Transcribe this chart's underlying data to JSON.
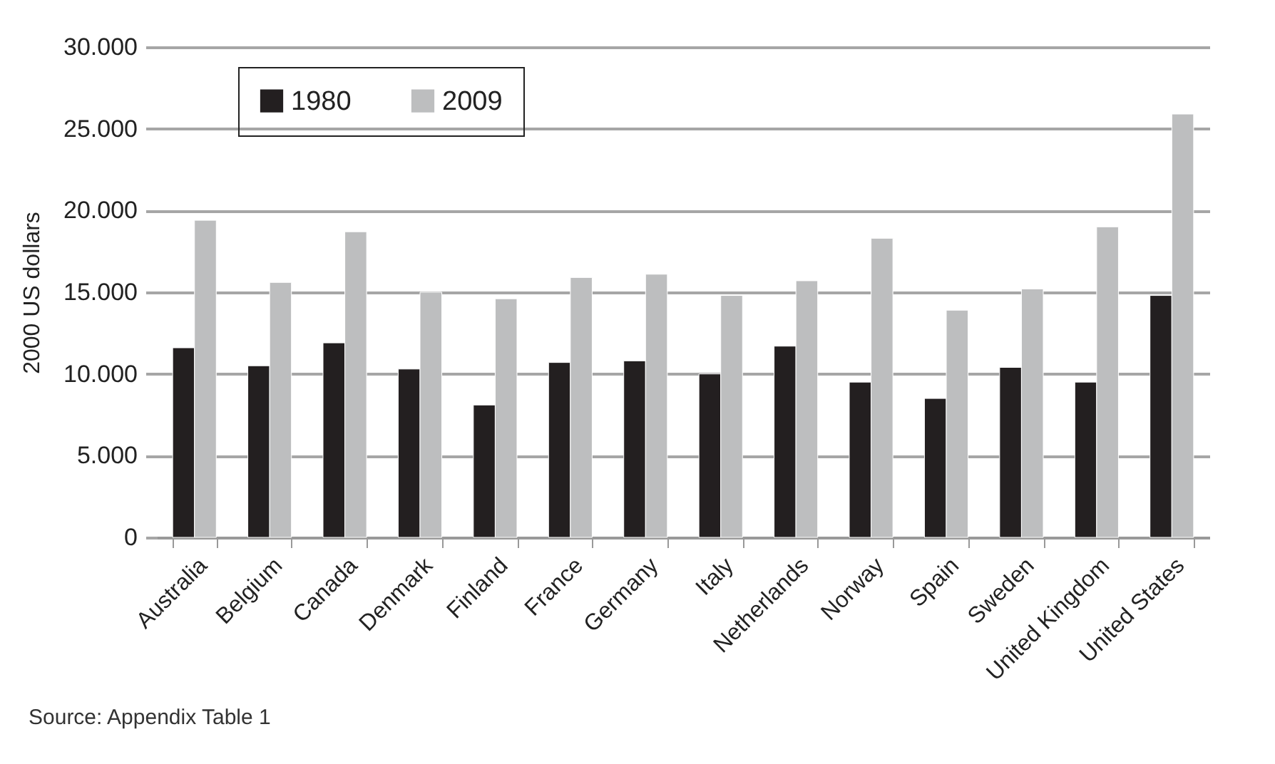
{
  "chart_data": {
    "type": "bar",
    "ylabel": "2000 US dollars",
    "categories": [
      "Australia",
      "Belgium",
      "Canada",
      "Denmark",
      "Finland",
      "France",
      "Germany",
      "Italy",
      "Netherlands",
      "Norway",
      "Spain",
      "Sweden",
      "United Kingdom",
      "United States"
    ],
    "series": [
      {
        "name": "1980",
        "color": "#231f20",
        "values": [
          11600,
          10500,
          11900,
          10300,
          8100,
          10700,
          10800,
          10000,
          11700,
          9500,
          8500,
          10400,
          9500,
          14800
        ]
      },
      {
        "name": "2009",
        "color": "#bdbebf",
        "values": [
          19400,
          15600,
          18700,
          15000,
          14600,
          15900,
          16100,
          14800,
          15700,
          18300,
          13900,
          15200,
          19000,
          25900
        ]
      }
    ],
    "ylim": [
      0,
      30000
    ],
    "yticks": [
      0,
      {
        "value": 5000,
        "label": "5.000"
      },
      {
        "value": 10000,
        "label": "10.000"
      },
      {
        "value": 15000,
        "label": "15.000"
      },
      {
        "value": 20000,
        "label": "20.000"
      },
      {
        "value": 25000,
        "label": "25.000"
      },
      {
        "value": 30000,
        "label": "30.000"
      }
    ],
    "grid": "y",
    "legend": "top left",
    "annotations": [
      "Source: Appendix Table 1"
    ]
  }
}
